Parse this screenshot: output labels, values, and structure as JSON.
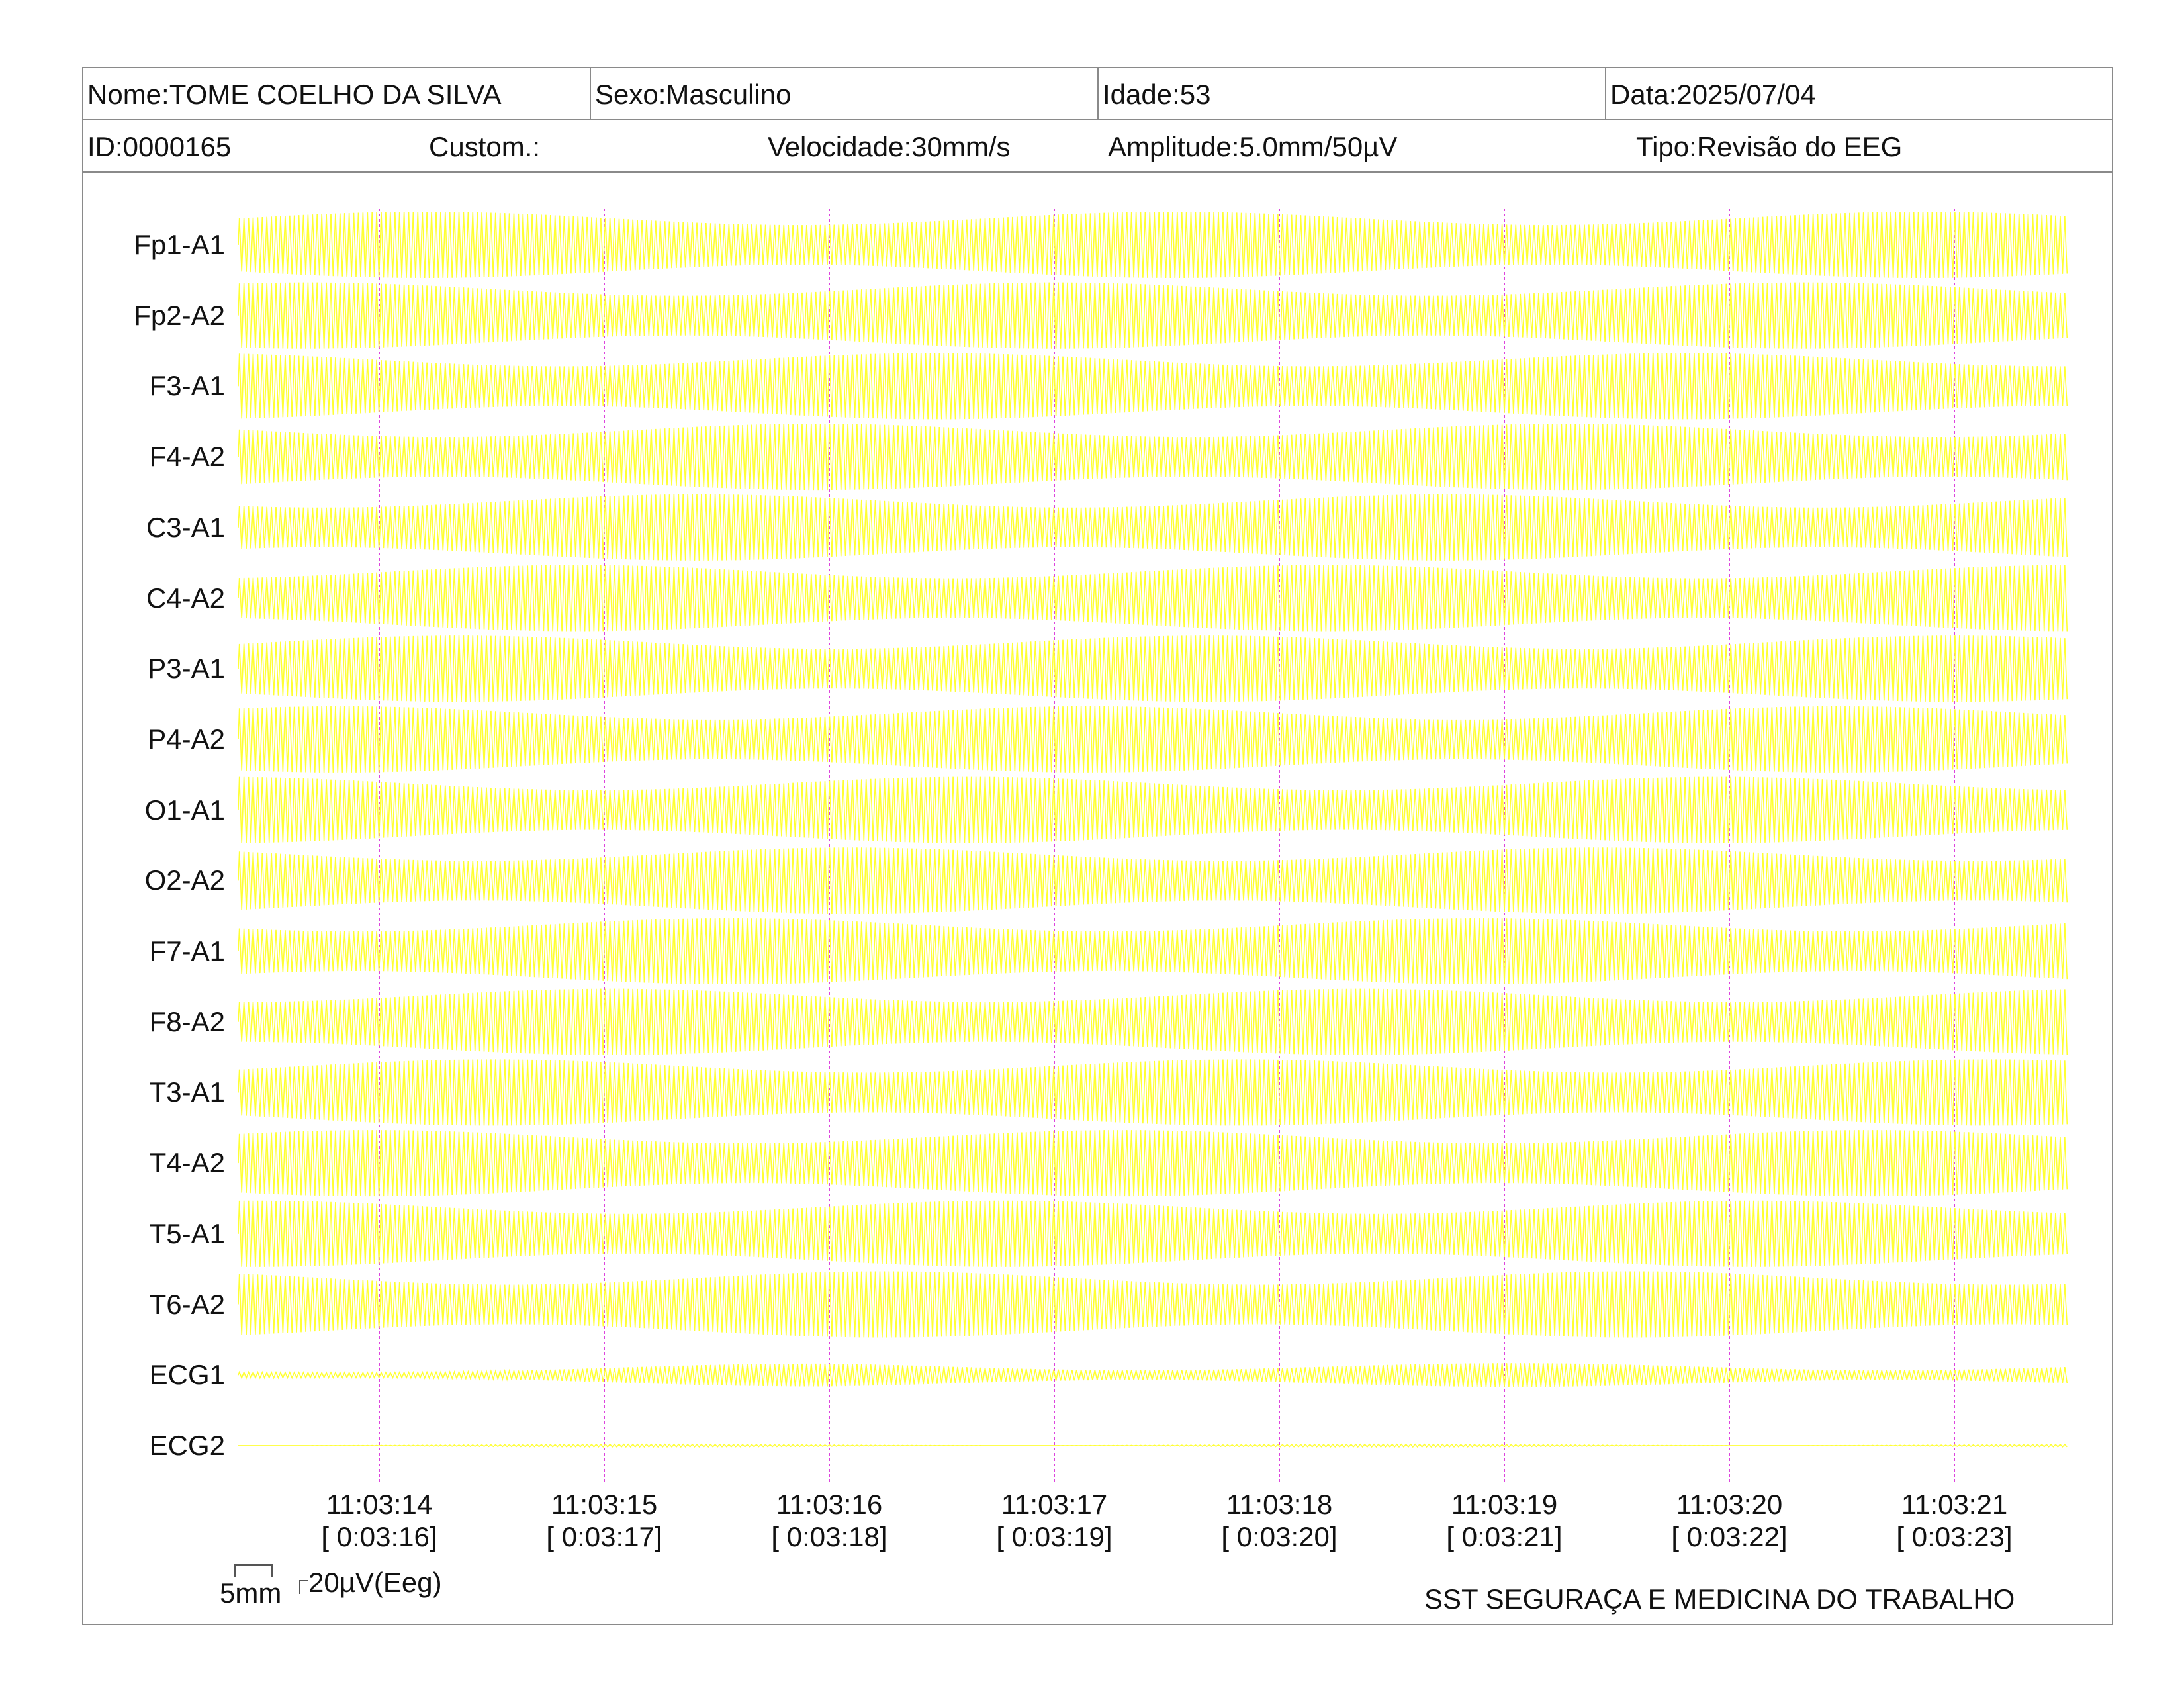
{
  "header": {
    "nome": "Nome:TOME COELHO DA SILVA",
    "sexo": "Sexo:Masculino",
    "idade": "Idade:53",
    "data": "Data:2025/07/04",
    "id": "ID:0000165",
    "custom": "Custom.:",
    "velocidade": "Velocidade:30mm/s",
    "amplitude": "Amplitude:5.0mm/50µV",
    "tipo": "Tipo:Revisão do EEG"
  },
  "footer": {
    "scale_time": "5mm",
    "scale_amp": "20µV(Eeg)",
    "institution": "SST SEGURAÇA E MEDICINA DO TRABALHO"
  },
  "colors": {
    "trace": "#ffff33",
    "marker": "#dd44dd",
    "border": "#8a8a8a"
  },
  "chart_data": {
    "type": "line",
    "channels": [
      "Fp1-A1",
      "Fp2-A2",
      "F3-A1",
      "F4-A2",
      "C3-A1",
      "C4-A2",
      "P3-A1",
      "P4-A2",
      "O1-A1",
      "O2-A2",
      "F7-A1",
      "F8-A2",
      "T3-A1",
      "T4-A2",
      "T5-A1",
      "T6-A2",
      "ECG1",
      "ECG2"
    ],
    "time_markers": [
      {
        "clock": "11:03:14",
        "elapsed": "[ 0:03:16]"
      },
      {
        "clock": "11:03:15",
        "elapsed": "[ 0:03:17]"
      },
      {
        "clock": "11:03:16",
        "elapsed": "[ 0:03:18]"
      },
      {
        "clock": "11:03:17",
        "elapsed": "[ 0:03:19]"
      },
      {
        "clock": "11:03:18",
        "elapsed": "[ 0:03:20]"
      },
      {
        "clock": "11:03:19",
        "elapsed": "[ 0:03:21]"
      },
      {
        "clock": "11:03:20",
        "elapsed": "[ 0:03:22]"
      },
      {
        "clock": "11:03:21",
        "elapsed": "[ 0:03:23]"
      }
    ],
    "sweep_speed_mm_per_s": 30,
    "approx_frequency_hz": 50,
    "grid": false
  }
}
